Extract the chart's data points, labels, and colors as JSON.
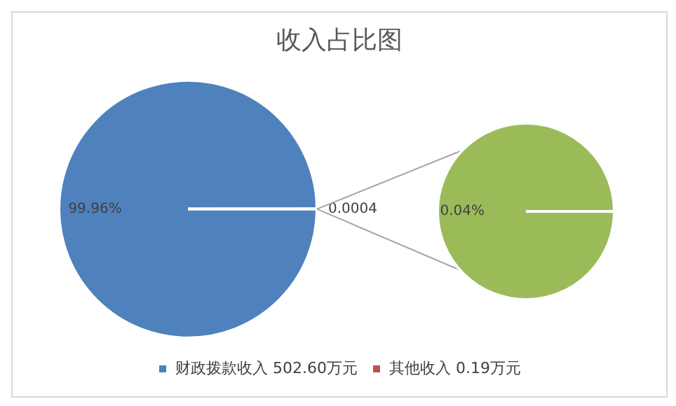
{
  "chart_data": [
    {
      "type": "pie",
      "title": "收入占比图",
      "categories": [
        "财政拨款收入 502.60万元",
        "其他收入 0.19万元"
      ],
      "values": [
        99.96,
        0.04
      ],
      "colors": [
        "#4f81bd",
        "#c0504d"
      ],
      "value_labels": [
        "99.96%",
        null
      ],
      "annotations": [
        "0.0004"
      ],
      "legend": "bottom"
    },
    {
      "type": "pie",
      "categories": [
        null
      ],
      "values": [
        0.04
      ],
      "colors": [
        "#9bbb59"
      ],
      "value_labels": [
        "0.04%"
      ]
    }
  ]
}
